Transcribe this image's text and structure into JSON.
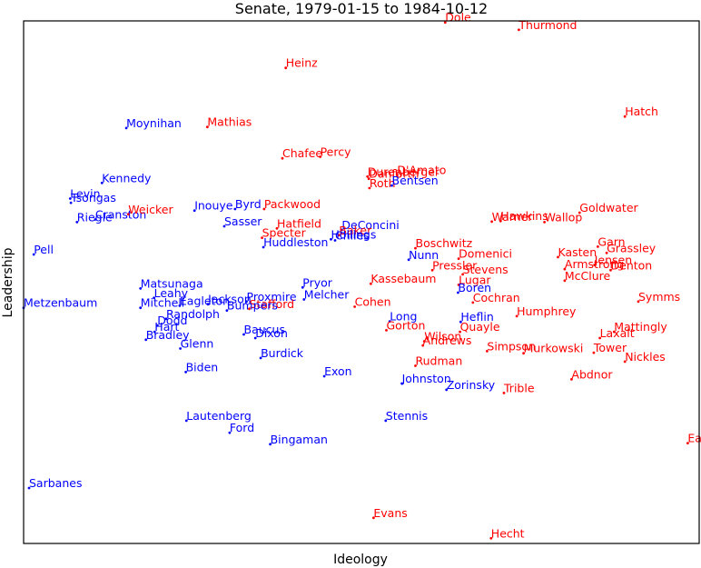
{
  "chart_data": {
    "type": "scatter",
    "title": "Senate, 1979-01-15 to 1984-10-12",
    "xlabel": "Ideology",
    "ylabel": "Leadership",
    "xlim": [
      0,
      100
    ],
    "ylim": [
      0,
      100
    ],
    "grid": false,
    "axis_ticks": false,
    "colors": {
      "democrat": "#0000ff",
      "republican": "#ff0000"
    },
    "points": [
      {
        "label": "Dole",
        "x": 62.4,
        "y": 99.7,
        "party": "R"
      },
      {
        "label": "Thurmond",
        "x": 73.3,
        "y": 98.3,
        "party": "R"
      },
      {
        "label": "Heinz",
        "x": 38.8,
        "y": 91.0,
        "party": "R"
      },
      {
        "label": "Hatch",
        "x": 89.0,
        "y": 81.7,
        "party": "R"
      },
      {
        "label": "Moynihan",
        "x": 15.2,
        "y": 79.5,
        "party": "D"
      },
      {
        "label": "Mathias",
        "x": 27.2,
        "y": 79.7,
        "party": "R"
      },
      {
        "label": "Chafee",
        "x": 38.3,
        "y": 73.7,
        "party": "R"
      },
      {
        "label": "Percy",
        "x": 43.9,
        "y": 74.0,
        "party": "R"
      },
      {
        "label": "Durenberger",
        "x": 50.9,
        "y": 70.2,
        "party": "R"
      },
      {
        "label": "Danforth",
        "x": 51.1,
        "y": 69.8,
        "party": "R"
      },
      {
        "label": "D'Amato",
        "x": 55.3,
        "y": 70.5,
        "party": "R"
      },
      {
        "label": "Roth",
        "x": 51.2,
        "y": 68.0,
        "party": "R"
      },
      {
        "label": "Bentsen",
        "x": 54.5,
        "y": 68.5,
        "party": "D"
      },
      {
        "label": "Kennedy",
        "x": 11.6,
        "y": 69.0,
        "party": "D"
      },
      {
        "label": "Levin",
        "x": 6.9,
        "y": 66.0,
        "party": "D"
      },
      {
        "label": "Tsongas",
        "x": 7.0,
        "y": 65.2,
        "party": "D"
      },
      {
        "label": "Cranston",
        "x": 10.6,
        "y": 62.0,
        "party": "D"
      },
      {
        "label": "Riegle",
        "x": 7.9,
        "y": 61.5,
        "party": "D"
      },
      {
        "label": "Weicker",
        "x": 15.5,
        "y": 63.0,
        "party": "R"
      },
      {
        "label": "Inouye",
        "x": 25.3,
        "y": 63.7,
        "party": "D"
      },
      {
        "label": "Byrd",
        "x": 31.3,
        "y": 64.0,
        "party": "D"
      },
      {
        "label": "Packwood",
        "x": 35.6,
        "y": 64.0,
        "party": "R"
      },
      {
        "label": "Sasser",
        "x": 29.7,
        "y": 60.7,
        "party": "D"
      },
      {
        "label": "Hatfield",
        "x": 37.5,
        "y": 60.3,
        "party": "R"
      },
      {
        "label": "DeConcini",
        "x": 47.1,
        "y": 60.0,
        "party": "D"
      },
      {
        "label": "Baker",
        "x": 46.7,
        "y": 59.0,
        "party": "R"
      },
      {
        "label": "Chiles",
        "x": 46.1,
        "y": 58.0,
        "party": "D"
      },
      {
        "label": "Hollings",
        "x": 45.5,
        "y": 58.2,
        "party": "D"
      },
      {
        "label": "Specter",
        "x": 35.3,
        "y": 58.5,
        "party": "R"
      },
      {
        "label": "Huddleston",
        "x": 35.5,
        "y": 56.7,
        "party": "D"
      },
      {
        "label": "Warner",
        "x": 69.3,
        "y": 61.6,
        "party": "R"
      },
      {
        "label": "Hawkins",
        "x": 70.6,
        "y": 61.7,
        "party": "R"
      },
      {
        "label": "Wallop",
        "x": 77.1,
        "y": 61.5,
        "party": "R"
      },
      {
        "label": "Goldwater",
        "x": 82.3,
        "y": 63.3,
        "party": "R"
      },
      {
        "label": "Boschwitz",
        "x": 58.0,
        "y": 56.5,
        "party": "R"
      },
      {
        "label": "Nunn",
        "x": 57.0,
        "y": 54.3,
        "party": "D"
      },
      {
        "label": "Domenici",
        "x": 64.4,
        "y": 54.5,
        "party": "R"
      },
      {
        "label": "Pressler",
        "x": 60.5,
        "y": 52.3,
        "party": "R"
      },
      {
        "label": "Stevens",
        "x": 65.0,
        "y": 51.5,
        "party": "R"
      },
      {
        "label": "Lugar",
        "x": 64.4,
        "y": 49.5,
        "party": "R"
      },
      {
        "label": "Boren",
        "x": 64.3,
        "y": 48.0,
        "party": "D"
      },
      {
        "label": "Garn",
        "x": 85.0,
        "y": 56.8,
        "party": "R"
      },
      {
        "label": "Grassley",
        "x": 86.3,
        "y": 55.6,
        "party": "R"
      },
      {
        "label": "Kasten",
        "x": 79.1,
        "y": 54.8,
        "party": "R"
      },
      {
        "label": "Jensen",
        "x": 84.5,
        "y": 53.3,
        "party": "R"
      },
      {
        "label": "Armstrong",
        "x": 80.1,
        "y": 52.5,
        "party": "R"
      },
      {
        "label": "Denton",
        "x": 86.9,
        "y": 52.3,
        "party": "R"
      },
      {
        "label": "McClure",
        "x": 80.1,
        "y": 50.3,
        "party": "R"
      },
      {
        "label": "Symms",
        "x": 91.0,
        "y": 46.3,
        "party": "R"
      },
      {
        "label": "Pell",
        "x": 1.5,
        "y": 55.3,
        "party": "D"
      },
      {
        "label": "Matsunaga",
        "x": 17.3,
        "y": 48.8,
        "party": "D"
      },
      {
        "label": "Leahy",
        "x": 19.3,
        "y": 47.0,
        "party": "D"
      },
      {
        "label": "Pryor",
        "x": 41.3,
        "y": 49.0,
        "party": "D"
      },
      {
        "label": "Kassebaum",
        "x": 51.4,
        "y": 49.7,
        "party": "R"
      },
      {
        "label": "Melcher",
        "x": 41.5,
        "y": 46.7,
        "party": "D"
      },
      {
        "label": "Proxmire",
        "x": 33.0,
        "y": 46.3,
        "party": "D"
      },
      {
        "label": "Stafford",
        "x": 33.4,
        "y": 44.9,
        "party": "R"
      },
      {
        "label": "Jackson",
        "x": 27.3,
        "y": 45.8,
        "party": "D"
      },
      {
        "label": "Eagleton",
        "x": 23.1,
        "y": 45.5,
        "party": "D"
      },
      {
        "label": "Bumpers",
        "x": 30.1,
        "y": 44.6,
        "party": "D"
      },
      {
        "label": "Cohen",
        "x": 49.0,
        "y": 45.3,
        "party": "R"
      },
      {
        "label": "Cochran",
        "x": 66.5,
        "y": 46.1,
        "party": "R"
      },
      {
        "label": "Metzenbaum",
        "x": 0.0,
        "y": 45.1,
        "party": "D"
      },
      {
        "label": "Mitchell",
        "x": 17.3,
        "y": 45.1,
        "party": "D"
      },
      {
        "label": "Randolph",
        "x": 21.1,
        "y": 43.0,
        "party": "D"
      },
      {
        "label": "Dodd",
        "x": 19.8,
        "y": 41.7,
        "party": "D"
      },
      {
        "label": "Hart",
        "x": 19.4,
        "y": 40.5,
        "party": "D"
      },
      {
        "label": "Bradley",
        "x": 18.1,
        "y": 39.0,
        "party": "D"
      },
      {
        "label": "Humphrey",
        "x": 73.0,
        "y": 43.5,
        "party": "R"
      },
      {
        "label": "Long",
        "x": 54.2,
        "y": 42.5,
        "party": "D"
      },
      {
        "label": "Gorton",
        "x": 53.7,
        "y": 40.8,
        "party": "R"
      },
      {
        "label": "Heflin",
        "x": 64.7,
        "y": 42.4,
        "party": "D"
      },
      {
        "label": "Quayle",
        "x": 64.6,
        "y": 40.5,
        "party": "R"
      },
      {
        "label": "Wilson",
        "x": 59.3,
        "y": 38.7,
        "party": "R"
      },
      {
        "label": "Andrews",
        "x": 59.1,
        "y": 37.9,
        "party": "R"
      },
      {
        "label": "Baucus",
        "x": 32.6,
        "y": 40.0,
        "party": "D"
      },
      {
        "label": "Dixon",
        "x": 34.3,
        "y": 39.3,
        "party": "D"
      },
      {
        "label": "Glenn",
        "x": 23.2,
        "y": 37.3,
        "party": "D"
      },
      {
        "label": "Mattingly",
        "x": 87.4,
        "y": 40.5,
        "party": "R"
      },
      {
        "label": "Laxalt",
        "x": 85.3,
        "y": 39.3,
        "party": "R"
      },
      {
        "label": "Simpson",
        "x": 68.6,
        "y": 36.8,
        "party": "R"
      },
      {
        "label": "Murkowski",
        "x": 74.0,
        "y": 36.4,
        "party": "R"
      },
      {
        "label": "Tower",
        "x": 84.4,
        "y": 36.5,
        "party": "R"
      },
      {
        "label": "Burdick",
        "x": 35.1,
        "y": 35.5,
        "party": "D"
      },
      {
        "label": "Nickles",
        "x": 89.0,
        "y": 34.8,
        "party": "R"
      },
      {
        "label": "Rudman",
        "x": 58.0,
        "y": 34.0,
        "party": "R"
      },
      {
        "label": "Biden",
        "x": 24.0,
        "y": 32.8,
        "party": "D"
      },
      {
        "label": "Exon",
        "x": 44.5,
        "y": 32.0,
        "party": "D"
      },
      {
        "label": "Johnston",
        "x": 56.0,
        "y": 30.6,
        "party": "D"
      },
      {
        "label": "Abdnor",
        "x": 81.1,
        "y": 31.4,
        "party": "R"
      },
      {
        "label": "Zorinsky",
        "x": 62.6,
        "y": 29.4,
        "party": "D"
      },
      {
        "label": "Trible",
        "x": 71.1,
        "y": 28.8,
        "party": "R"
      },
      {
        "label": "Stennis",
        "x": 53.6,
        "y": 23.5,
        "party": "D"
      },
      {
        "label": "Lautenberg",
        "x": 24.1,
        "y": 23.5,
        "party": "D"
      },
      {
        "label": "Ford",
        "x": 30.5,
        "y": 21.2,
        "party": "D"
      },
      {
        "label": "Bingaman",
        "x": 36.5,
        "y": 19.0,
        "party": "D"
      },
      {
        "label": "East",
        "x": 98.3,
        "y": 19.2,
        "party": "R"
      },
      {
        "label": "Sarbanes",
        "x": 0.8,
        "y": 10.6,
        "party": "D"
      },
      {
        "label": "Evans",
        "x": 51.8,
        "y": 4.9,
        "party": "R"
      },
      {
        "label": "Hecht",
        "x": 69.2,
        "y": 1.0,
        "party": "R"
      }
    ]
  }
}
